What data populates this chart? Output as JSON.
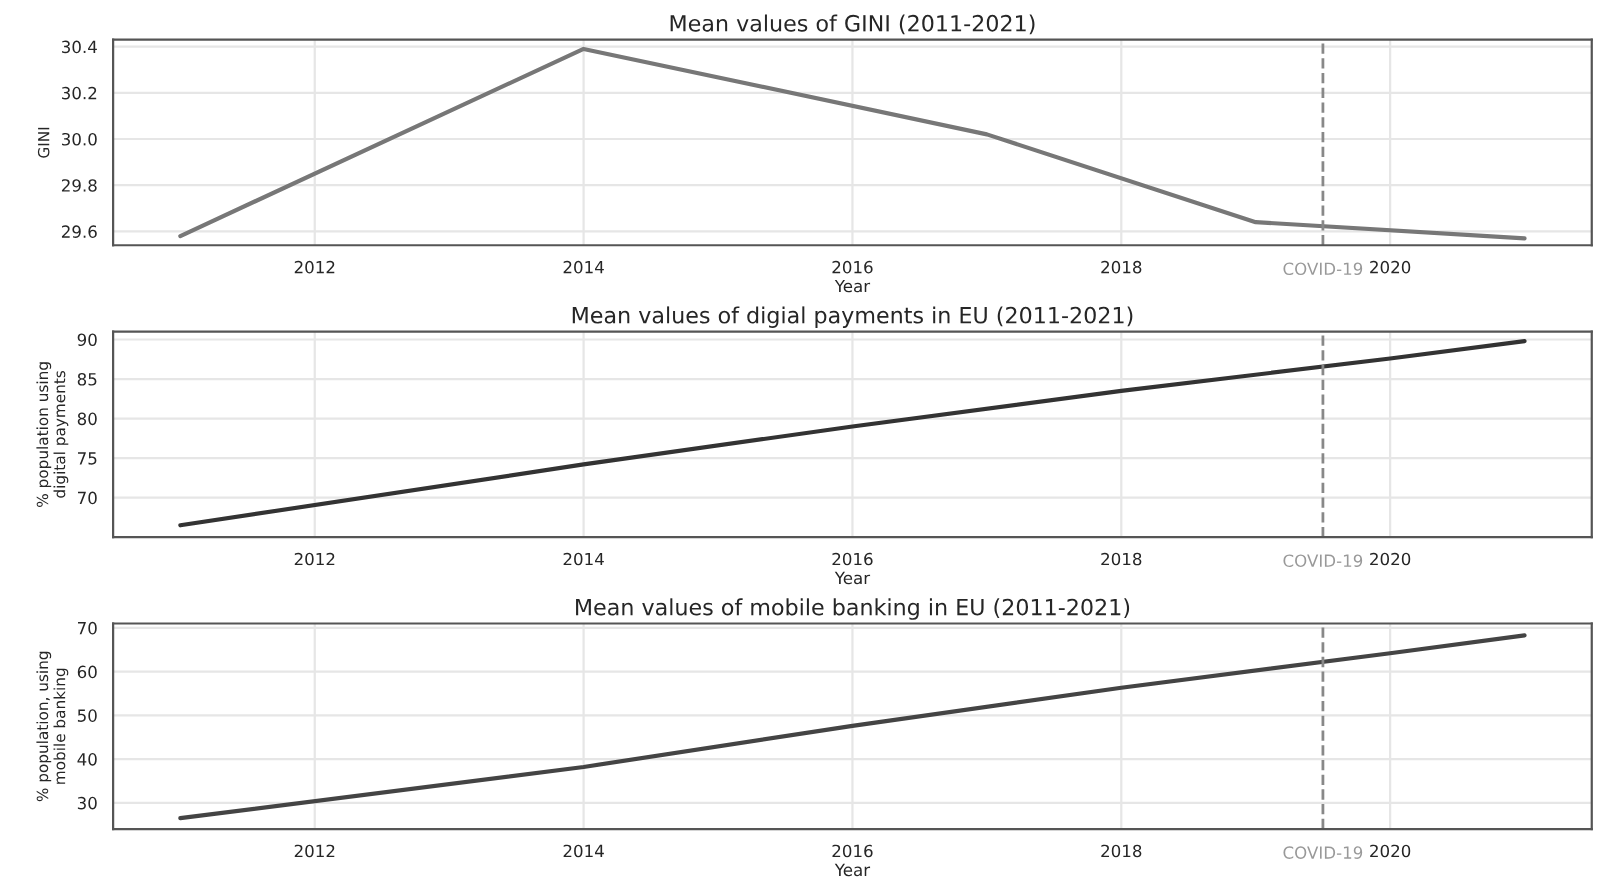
{
  "chart_data": [
    {
      "type": "line",
      "title": "Mean values of GINI (2011-2021)",
      "xlabel": "Year",
      "ylabel": "GINI",
      "x": [
        2011,
        2014,
        2017,
        2019,
        2021
      ],
      "series": [
        {
          "color": "#777777",
          "values": [
            29.58,
            30.39,
            30.02,
            29.64,
            29.57
          ]
        }
      ],
      "xlim": [
        2010.5,
        2021.5
      ],
      "xticks": [
        2012,
        2014,
        2016,
        2018,
        2020
      ],
      "ylim": [
        29.54,
        30.43
      ],
      "yticks": [
        29.6,
        29.8,
        {
          "value": 30,
          "label": "30.0"
        },
        30.2,
        30.4
      ],
      "ref_lines": [
        {
          "axis": "x",
          "value": 2019.5,
          "label": "COVID-19",
          "color": "#888888",
          "line_style": "dashed"
        }
      ],
      "grid": true
    },
    {
      "type": "line",
      "title": "Mean values of digial payments in EU (2011-2021)",
      "xlabel": "Year",
      "ylabel": "% population using\ndigital payments",
      "x": [
        2011,
        2014,
        2016,
        2018,
        2020,
        2021
      ],
      "series": [
        {
          "color": "#333333",
          "values": [
            66.5,
            74.2,
            79.0,
            83.5,
            87.6,
            89.8
          ]
        }
      ],
      "xlim": [
        2010.5,
        2021.5
      ],
      "xticks": [
        2012,
        2014,
        2016,
        2018,
        2020
      ],
      "ylim": [
        65,
        91
      ],
      "yticks": [
        70,
        75,
        80,
        85,
        90
      ],
      "ref_lines": [
        {
          "axis": "x",
          "value": 2019.5,
          "label": "COVID-19",
          "color": "#888888",
          "line_style": "dashed"
        }
      ],
      "grid": true
    },
    {
      "type": "line",
      "title": "Mean values of mobile banking in EU (2011-2021)",
      "xlabel": "Year",
      "ylabel": "% population, using\nmobile banking",
      "x": [
        2011,
        2014,
        2016,
        2018,
        2020,
        2021
      ],
      "series": [
        {
          "color": "#444444",
          "values": [
            26.5,
            38.2,
            47.6,
            56.3,
            64.2,
            68.3
          ]
        }
      ],
      "xlim": [
        2010.5,
        2021.5
      ],
      "xticks": [
        2012,
        2014,
        2016,
        2018,
        2020
      ],
      "ylim": [
        24,
        71
      ],
      "yticks": [
        30,
        40,
        50,
        60,
        70
      ],
      "ref_lines": [
        {
          "axis": "x",
          "value": 2019.5,
          "label": "COVID-19",
          "color": "#888888",
          "line_style": "dashed"
        }
      ],
      "grid": true
    }
  ]
}
